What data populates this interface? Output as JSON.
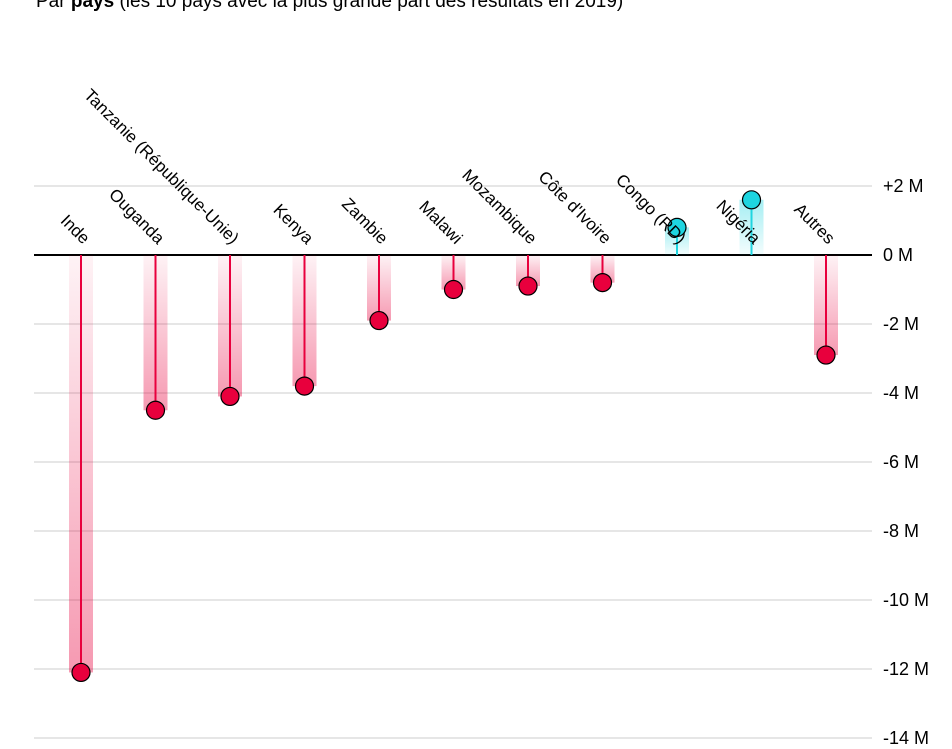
{
  "subtitle": {
    "prefix": "Par ",
    "bold": "pays",
    "suffix": " (les 10 pays avec la plus grande part des résultats en 2019)"
  },
  "colors": {
    "negative": "#e8003d",
    "positive": "#1ed5e0",
    "grid": "#cccccc",
    "zero_line": "#000000",
    "text": "#000000"
  },
  "chart_data": {
    "type": "lollipop",
    "categories": [
      "Inde",
      "Ouganda",
      "Tanzanie (République-Unie)",
      "Kenya",
      "Zambie",
      "Malawi",
      "Mozambique",
      "Côte d'Ivoire",
      "Congo (RD)",
      "Nigéria",
      "Autres"
    ],
    "values": [
      -12.1,
      -4.5,
      -4.1,
      -3.8,
      -1.9,
      -1.0,
      -0.9,
      -0.8,
      0.8,
      1.6,
      -2.9
    ],
    "ylim": [
      -14,
      2
    ],
    "yticks": [
      2,
      0,
      -2,
      -4,
      -6,
      -8,
      -10,
      -12,
      -14
    ],
    "ytick_labels": [
      "+2 M",
      "0 M",
      "-2 M",
      "-4 M",
      "-6 M",
      "-8 M",
      "-10 M",
      "-12 M",
      "-14 M"
    ],
    "grid": true
  }
}
